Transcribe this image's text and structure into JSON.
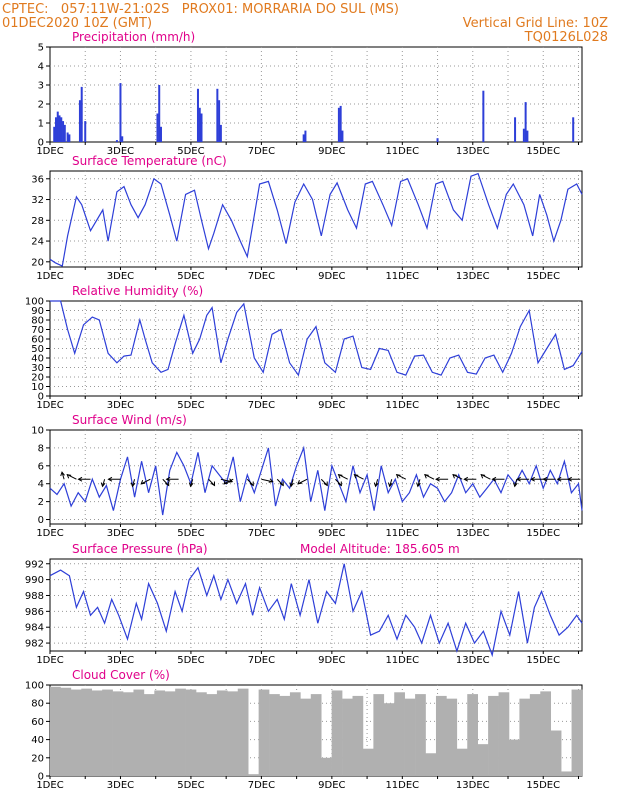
{
  "header": {
    "line1": "CPTEC:   057:11W-21:02S   PROX01: MORRARIA DO SUL (MS)",
    "line2_left": "01DEC2020 10Z (GMT)",
    "line2_right": "Vertical Grid Line: 10Z",
    "line3_right": "TQ0126L028"
  },
  "colors": {
    "series": "#2e3fd8",
    "cloud": "#b0b0b0",
    "title": "#e0008a",
    "header": "#e07a1f"
  },
  "chart_data": [
    {
      "type": "bar",
      "title": "Precipitation (mm/h)",
      "ylim": [
        0,
        5
      ],
      "yticks": [
        0,
        1,
        2,
        3,
        4,
        5
      ],
      "xticks": [
        "1DEC",
        "3DEC",
        "5DEC",
        "7DEC",
        "9DEC",
        "11DEC",
        "13DEC",
        "15DEC"
      ],
      "x_day_range": [
        1,
        16.1
      ],
      "x": [
        1.12,
        1.17,
        1.22,
        1.27,
        1.32,
        1.37,
        1.42,
        1.5,
        1.55,
        1.85,
        1.9,
        2.0,
        2.9,
        3.0,
        3.05,
        4.05,
        4.1,
        4.15,
        5.2,
        5.25,
        5.3,
        5.75,
        5.8,
        5.85,
        8.2,
        8.25,
        9.2,
        9.25,
        9.3,
        12.0,
        13.3,
        14.2,
        14.45,
        14.5,
        14.55,
        15.85
      ],
      "values": [
        0.8,
        1.3,
        1.6,
        1.4,
        1.3,
        1.1,
        0.9,
        0.5,
        0.4,
        2.2,
        2.9,
        1.1,
        0.1,
        3.1,
        0.3,
        1.5,
        3.0,
        0.8,
        2.8,
        1.8,
        1.5,
        2.8,
        2.2,
        0.9,
        0.4,
        0.6,
        1.8,
        1.9,
        0.6,
        0.2,
        2.7,
        1.3,
        0.7,
        2.1,
        0.6,
        1.3
      ]
    },
    {
      "type": "line",
      "title": "Surface Temperature (nC)",
      "ylim": [
        19,
        37.5
      ],
      "yticks": [
        20,
        24,
        28,
        32,
        36
      ],
      "xticks": [
        "1DEC",
        "3DEC",
        "5DEC",
        "7DEC",
        "9DEC",
        "11DEC",
        "13DEC",
        "15DEC"
      ],
      "x": [
        1.0,
        1.15,
        1.35,
        1.5,
        1.75,
        1.9,
        2.15,
        2.5,
        2.65,
        2.9,
        3.1,
        3.3,
        3.5,
        3.7,
        3.95,
        4.15,
        4.4,
        4.6,
        4.85,
        5.1,
        5.3,
        5.5,
        5.65,
        5.9,
        6.15,
        6.4,
        6.6,
        6.75,
        6.95,
        7.2,
        7.45,
        7.7,
        7.95,
        8.2,
        8.45,
        8.7,
        8.95,
        9.15,
        9.45,
        9.7,
        9.95,
        10.15,
        10.45,
        10.7,
        10.95,
        11.15,
        11.45,
        11.7,
        11.95,
        12.15,
        12.45,
        12.7,
        12.95,
        13.15,
        13.45,
        13.7,
        13.95,
        14.15,
        14.45,
        14.7,
        14.9,
        15.1,
        15.3,
        15.5,
        15.7,
        15.95,
        16.1
      ],
      "values": [
        20.5,
        19.8,
        19.2,
        25.0,
        32.5,
        31.0,
        26.0,
        30.0,
        24.0,
        33.5,
        34.5,
        31.0,
        28.5,
        31.0,
        36.0,
        35.0,
        29.0,
        24.0,
        33.0,
        33.8,
        28.0,
        22.5,
        25.5,
        31.0,
        28.0,
        24.0,
        21.0,
        27.0,
        35.0,
        35.5,
        30.0,
        23.5,
        31.5,
        35.0,
        32.0,
        25.0,
        33.0,
        35.2,
        30.0,
        26.5,
        35.0,
        35.5,
        31.0,
        27.0,
        35.5,
        36.0,
        31.0,
        26.5,
        35.0,
        35.5,
        30.0,
        28.0,
        36.5,
        37.0,
        31.0,
        26.5,
        33.0,
        35.0,
        31.0,
        25.0,
        33.0,
        29.0,
        24.0,
        28.0,
        34.0,
        35.0,
        33.0
      ]
    },
    {
      "type": "line",
      "title": "Relative Humidity (%)",
      "ylim": [
        0,
        100
      ],
      "yticks": [
        0,
        10,
        20,
        30,
        40,
        50,
        60,
        70,
        80,
        90,
        100
      ],
      "xticks": [
        "1DEC",
        "3DEC",
        "5DEC",
        "7DEC",
        "9DEC",
        "11DEC",
        "13DEC",
        "15DEC"
      ],
      "x": [
        1.0,
        1.3,
        1.5,
        1.7,
        1.95,
        2.2,
        2.4,
        2.65,
        2.9,
        3.1,
        3.3,
        3.55,
        3.7,
        3.9,
        4.15,
        4.35,
        4.55,
        4.8,
        5.05,
        5.25,
        5.45,
        5.6,
        5.85,
        6.05,
        6.3,
        6.5,
        6.8,
        7.05,
        7.3,
        7.55,
        7.8,
        8.05,
        8.3,
        8.55,
        8.8,
        9.1,
        9.35,
        9.6,
        9.85,
        10.1,
        10.35,
        10.6,
        10.85,
        11.1,
        11.35,
        11.6,
        11.85,
        12.1,
        12.35,
        12.6,
        12.85,
        13.1,
        13.35,
        13.6,
        13.85,
        14.1,
        14.35,
        14.6,
        14.85,
        15.1,
        15.35,
        15.6,
        15.85,
        16.1
      ],
      "values": [
        100,
        100,
        70,
        45,
        75,
        83,
        80,
        45,
        35,
        42,
        43,
        80,
        60,
        35,
        25,
        28,
        55,
        85,
        45,
        60,
        85,
        93,
        35,
        60,
        88,
        97,
        40,
        25,
        65,
        70,
        35,
        22,
        60,
        73,
        35,
        25,
        60,
        63,
        30,
        28,
        50,
        48,
        25,
        22,
        42,
        43,
        25,
        22,
        40,
        43,
        25,
        23,
        40,
        43,
        25,
        45,
        73,
        90,
        35,
        50,
        65,
        28,
        32,
        47
      ]
    },
    {
      "type": "line",
      "title": "Surface Wind (m/s)",
      "ylim": [
        -0.5,
        10
      ],
      "yticks": [
        0,
        2,
        4,
        6,
        8,
        10
      ],
      "xticks": [
        "1DEC",
        "3DEC",
        "5DEC",
        "7DEC",
        "9DEC",
        "11DEC",
        "13DEC",
        "15DEC"
      ],
      "x": [
        1.0,
        1.2,
        1.4,
        1.6,
        1.8,
        2.0,
        2.2,
        2.4,
        2.6,
        2.8,
        3.0,
        3.2,
        3.4,
        3.6,
        3.8,
        4.0,
        4.2,
        4.4,
        4.6,
        4.8,
        5.0,
        5.2,
        5.4,
        5.6,
        5.8,
        6.0,
        6.2,
        6.4,
        6.6,
        6.8,
        7.0,
        7.2,
        7.4,
        7.6,
        7.8,
        8.0,
        8.2,
        8.4,
        8.6,
        8.8,
        9.0,
        9.2,
        9.4,
        9.6,
        9.8,
        10.0,
        10.2,
        10.4,
        10.6,
        10.8,
        11.0,
        11.2,
        11.4,
        11.6,
        11.8,
        12.0,
        12.2,
        12.4,
        12.6,
        12.8,
        13.0,
        13.2,
        13.4,
        13.6,
        13.8,
        14.0,
        14.2,
        14.4,
        14.6,
        14.8,
        15.0,
        15.2,
        15.4,
        15.6,
        15.8,
        16.0,
        16.1
      ],
      "values": [
        3.5,
        2.8,
        4.0,
        1.5,
        3.0,
        2.0,
        4.5,
        2.5,
        3.8,
        1.0,
        4.5,
        7.0,
        2.5,
        6.5,
        3.0,
        6.0,
        0.5,
        5.5,
        7.5,
        6.0,
        4.0,
        7.5,
        3.0,
        6.0,
        5.0,
        4.0,
        7.0,
        2.0,
        5.0,
        3.0,
        5.5,
        8.0,
        1.5,
        4.5,
        3.5,
        6.0,
        8.0,
        2.0,
        5.5,
        1.0,
        6.0,
        4.0,
        2.0,
        6.0,
        3.0,
        5.0,
        1.0,
        6.0,
        3.0,
        4.5,
        2.0,
        3.0,
        5.0,
        2.5,
        4.0,
        3.5,
        2.0,
        3.0,
        5.0,
        3.0,
        4.0,
        2.5,
        3.5,
        4.5,
        3.0,
        5.0,
        4.0,
        5.5,
        4.0,
        6.0,
        3.5,
        5.5,
        4.0,
        6.5,
        3.0,
        4.0,
        1.0
      ],
      "arrows_x": [
        1.4,
        1.75,
        2.15,
        2.55,
        3.0,
        3.4,
        3.85,
        4.2,
        4.65,
        5.05,
        5.5,
        5.85,
        6.2,
        6.6,
        7.0,
        7.45,
        7.9,
        8.3,
        8.7,
        9.1,
        9.45,
        9.9,
        10.3,
        10.7,
        11.1,
        11.5,
        11.9,
        12.3,
        12.7,
        13.1,
        13.5,
        13.9,
        14.25,
        14.6,
        15.0,
        15.35,
        15.75,
        16.05
      ],
      "arrows_u": [
        -2,
        -1,
        0,
        2,
        0,
        2,
        1,
        3,
        0,
        2,
        3,
        4,
        1,
        3,
        4,
        3,
        2,
        1,
        3,
        3,
        -1,
        -1,
        2,
        2,
        -1,
        2,
        -1,
        0,
        -1,
        0,
        -1,
        0,
        2,
        0,
        0,
        0,
        0,
        0
      ],
      "arrows_v": [
        0,
        0,
        0,
        0,
        0,
        0,
        0,
        0,
        0,
        0,
        0,
        0,
        0,
        0,
        0,
        0,
        0,
        0,
        0,
        0,
        0,
        0,
        0,
        0,
        0,
        0,
        0,
        0,
        0,
        0,
        0,
        0,
        0,
        0,
        0,
        0,
        0,
        0
      ]
    },
    {
      "type": "line",
      "title": "Surface Pressure (hPa)",
      "subtitle": "Model Altitude: 185.605 m",
      "ylim": [
        981,
        992.6
      ],
      "yticks": [
        982,
        984,
        986,
        988,
        990,
        992
      ],
      "xticks": [
        "1DEC",
        "3DEC",
        "5DEC",
        "7DEC",
        "9DEC",
        "11DEC",
        "13DEC",
        "15DEC"
      ],
      "x": [
        1.0,
        1.3,
        1.55,
        1.75,
        1.95,
        2.15,
        2.35,
        2.55,
        2.75,
        2.95,
        3.2,
        3.45,
        3.6,
        3.8,
        4.05,
        4.3,
        4.55,
        4.75,
        4.95,
        5.2,
        5.45,
        5.65,
        5.85,
        6.05,
        6.3,
        6.55,
        6.75,
        6.95,
        7.2,
        7.45,
        7.65,
        7.85,
        8.1,
        8.35,
        8.6,
        8.85,
        9.1,
        9.35,
        9.6,
        9.85,
        10.1,
        10.35,
        10.6,
        10.85,
        11.1,
        11.35,
        11.55,
        11.8,
        12.05,
        12.3,
        12.55,
        12.8,
        13.05,
        13.3,
        13.55,
        13.8,
        14.05,
        14.3,
        14.55,
        14.75,
        14.95,
        15.2,
        15.45,
        15.7,
        15.95,
        16.1
      ],
      "values": [
        990.5,
        991.2,
        990.5,
        986.5,
        988.5,
        985.5,
        986.5,
        984.5,
        987.5,
        985.5,
        982.5,
        987.0,
        985.0,
        989.5,
        987.0,
        983.5,
        988.5,
        986.0,
        990.0,
        991.5,
        988.0,
        990.5,
        987.5,
        990.0,
        987.0,
        989.5,
        985.5,
        989.0,
        986.0,
        987.5,
        985.0,
        989.5,
        985.5,
        990.0,
        984.5,
        988.5,
        987.0,
        992.0,
        986.0,
        988.5,
        983.0,
        983.5,
        985.5,
        982.5,
        985.5,
        984.0,
        982.0,
        985.5,
        982.0,
        984.5,
        981.0,
        984.5,
        982.0,
        983.5,
        980.5,
        986.0,
        983.0,
        988.5,
        982.0,
        986.5,
        988.5,
        985.5,
        983.0,
        984.0,
        985.5,
        984.5
      ]
    },
    {
      "type": "bar",
      "title": "Cloud Cover (%)",
      "ylim": [
        0,
        100
      ],
      "yticks": [
        0,
        20,
        40,
        60,
        80,
        100
      ],
      "xticks": [
        "1DEC",
        "3DEC",
        "5DEC",
        "7DEC",
        "9DEC",
        "11DEC",
        "13DEC",
        "15DEC"
      ],
      "x": [
        1.0,
        1.3,
        1.6,
        1.9,
        2.2,
        2.5,
        2.8,
        3.1,
        3.4,
        3.7,
        4.0,
        4.3,
        4.6,
        4.9,
        5.2,
        5.5,
        5.8,
        6.1,
        6.4,
        6.7,
        7.0,
        7.3,
        7.6,
        7.9,
        8.2,
        8.5,
        8.8,
        9.1,
        9.4,
        9.7,
        10.0,
        10.3,
        10.6,
        10.9,
        11.2,
        11.5,
        11.8,
        12.1,
        12.4,
        12.7,
        13.0,
        13.3,
        13.6,
        13.9,
        14.2,
        14.5,
        14.8,
        15.1,
        15.4,
        15.7,
        16.0
      ],
      "values": [
        98,
        97,
        95,
        96,
        94,
        95,
        93,
        92,
        95,
        90,
        94,
        93,
        96,
        95,
        92,
        90,
        94,
        93,
        96,
        2,
        95,
        90,
        88,
        92,
        85,
        90,
        20,
        94,
        85,
        88,
        30,
        90,
        80,
        92,
        85,
        90,
        25,
        88,
        85,
        30,
        90,
        35,
        88,
        92,
        40,
        85,
        90,
        93,
        50,
        5,
        95
      ]
    }
  ]
}
